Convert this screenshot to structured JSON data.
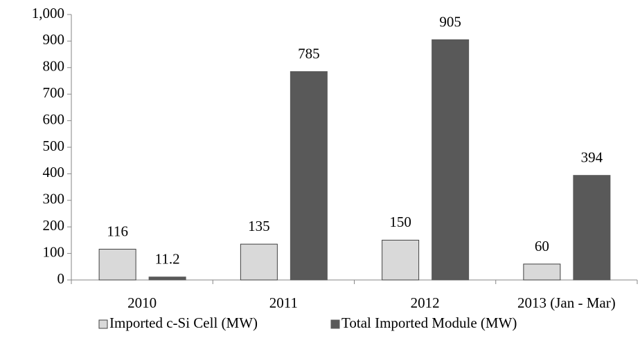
{
  "chart_data": {
    "type": "bar",
    "categories": [
      "2010",
      "2011",
      "2012",
      "2013 (Jan - Mar)"
    ],
    "series": [
      {
        "name": "Imported c-Si Cell (MW)",
        "color": "#d9d9d9",
        "values": [
          116,
          135,
          150,
          60
        ]
      },
      {
        "name": "Total Imported Module (MW)",
        "color": "#595959",
        "values": [
          11.2,
          785,
          905,
          394
        ]
      }
    ],
    "ylim": [
      0,
      1000
    ],
    "yticks": [
      0,
      100,
      200,
      300,
      400,
      500,
      600,
      700,
      800,
      900,
      {
        "value": 1000,
        "label": "1,000"
      }
    ],
    "legend": "bottom"
  }
}
